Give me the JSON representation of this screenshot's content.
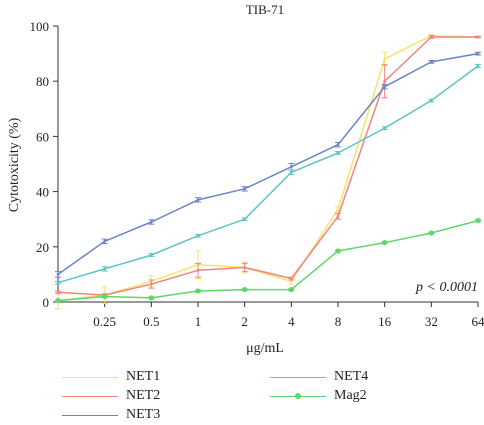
{
  "chart_data": {
    "type": "line",
    "title": "TIB-71",
    "xlabel": "μg/mL",
    "ylabel": "Cytotoxicity (%)",
    "categories": [
      "",
      "0.25",
      "0.5",
      "1",
      "2",
      "4",
      "8",
      "16",
      "32",
      "64"
    ],
    "ylim": [
      0,
      100
    ],
    "yticks": [
      0,
      20,
      40,
      60,
      80,
      100
    ],
    "annotation": "p < 0.0001",
    "grid": false,
    "legend_position": "bottom",
    "series": [
      {
        "name": "NET1",
        "color": "#f7e26b",
        "marker": "none",
        "values": [
          0.5,
          2.5,
          7.5,
          13.5,
          12.5,
          7.5,
          33.5,
          88,
          96.5,
          96
        ],
        "errors": [
          3,
          3,
          2,
          5,
          2,
          1,
          1,
          2.5,
          0.5,
          0.3
        ]
      },
      {
        "name": "NET2",
        "color": "#f0857f",
        "marker": "none",
        "values": [
          3.5,
          2.5,
          6.5,
          11.5,
          12.5,
          8.5,
          31,
          80,
          96,
          96
        ],
        "errors": [
          0.5,
          0.5,
          1.5,
          2.5,
          1.5,
          0.5,
          1,
          6,
          0.5,
          0.3
        ]
      },
      {
        "name": "NET3",
        "color": "#6b84c9",
        "marker": "none",
        "values": [
          10,
          22,
          29,
          37,
          41,
          49,
          57,
          78,
          87,
          90
        ],
        "errors": [
          1,
          0.8,
          0.8,
          0.8,
          0.8,
          1.2,
          0.8,
          0.8,
          0.5,
          0.5
        ]
      },
      {
        "name": "NET4",
        "color": "#5ec4c3",
        "marker": "none",
        "values": [
          7,
          12,
          17,
          24,
          30,
          47,
          54,
          63,
          73,
          85.5
        ],
        "errors": [
          0.5,
          0.8,
          0.5,
          0.5,
          0.5,
          0.8,
          0.5,
          0.5,
          0.5,
          0.6
        ]
      },
      {
        "name": "Mag2",
        "color": "#5fd56a",
        "marker": "dot",
        "values": [
          0.5,
          2,
          1.5,
          4,
          4.5,
          4.5,
          18.5,
          21.5,
          25,
          29.5
        ],
        "errors": [
          0.3,
          0.3,
          0.3,
          0.3,
          0.3,
          0.3,
          0.3,
          0.3,
          0.3,
          0.3
        ]
      }
    ]
  }
}
